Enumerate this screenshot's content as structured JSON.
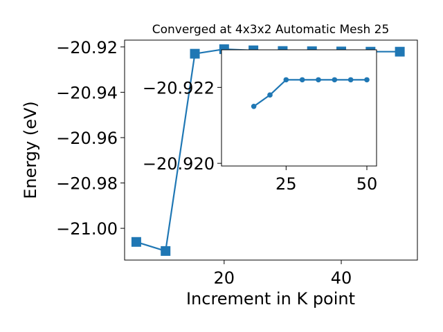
{
  "chart_data": [
    {
      "type": "line",
      "title": "Converged at 4x3x2 Automatic Mesh 25",
      "xlabel": "Increment in K point",
      "ylabel": "Energy (eV)",
      "x": [
        5,
        10,
        15,
        20,
        25,
        30,
        35,
        40,
        45,
        50
      ],
      "series": [
        {
          "values": [
            -21.006,
            -21.01,
            -20.923,
            -20.921,
            -20.9215,
            -20.9218,
            -20.9219,
            -20.922,
            -20.9221,
            -20.9221
          ]
        }
      ],
      "xlim": [
        3,
        53
      ],
      "ylim": [
        -21.014,
        -20.917
      ],
      "xticks": [
        20,
        40
      ],
      "xtick_labels": [
        "20",
        "40"
      ],
      "yticks": [
        -20.92,
        -20.94,
        -20.96,
        -20.98,
        -21.0
      ],
      "ytick_labels": [
        "−20.92",
        "−20.94",
        "−20.96",
        "−20.98",
        "−21.00"
      ],
      "marker": "square",
      "color": "#1f77b4",
      "grid": false
    },
    {
      "type": "line",
      "role": "inset",
      "x": [
        15,
        20,
        25,
        30,
        35,
        40,
        45,
        50
      ],
      "series": [
        {
          "values": [
            -20.9215,
            -20.9218,
            -20.9222,
            -20.9222,
            -20.9222,
            -20.9222,
            -20.9222,
            -20.9222
          ]
        }
      ],
      "xlim": [
        5,
        53
      ],
      "ylim": [
        -20.91993,
        -20.92299
      ],
      "xticks": [
        25,
        50
      ],
      "xtick_labels": [
        "25",
        "50"
      ],
      "yticks": [
        -20.922,
        -20.92
      ],
      "ytick_labels": [
        "−20.922",
        "−20.920"
      ],
      "marker": "circle",
      "color": "#1f77b4",
      "grid": false
    }
  ]
}
